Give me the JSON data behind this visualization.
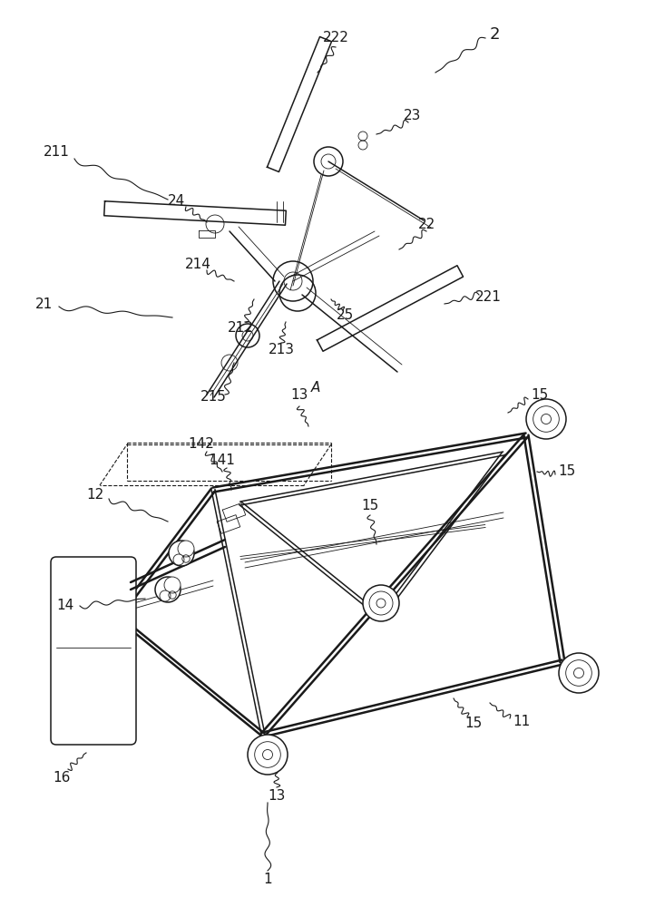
{
  "bg_color": "#ffffff",
  "line_color": "#1a1a1a",
  "fig_width": 7.11,
  "fig_height": 10.0,
  "dpi": 100
}
